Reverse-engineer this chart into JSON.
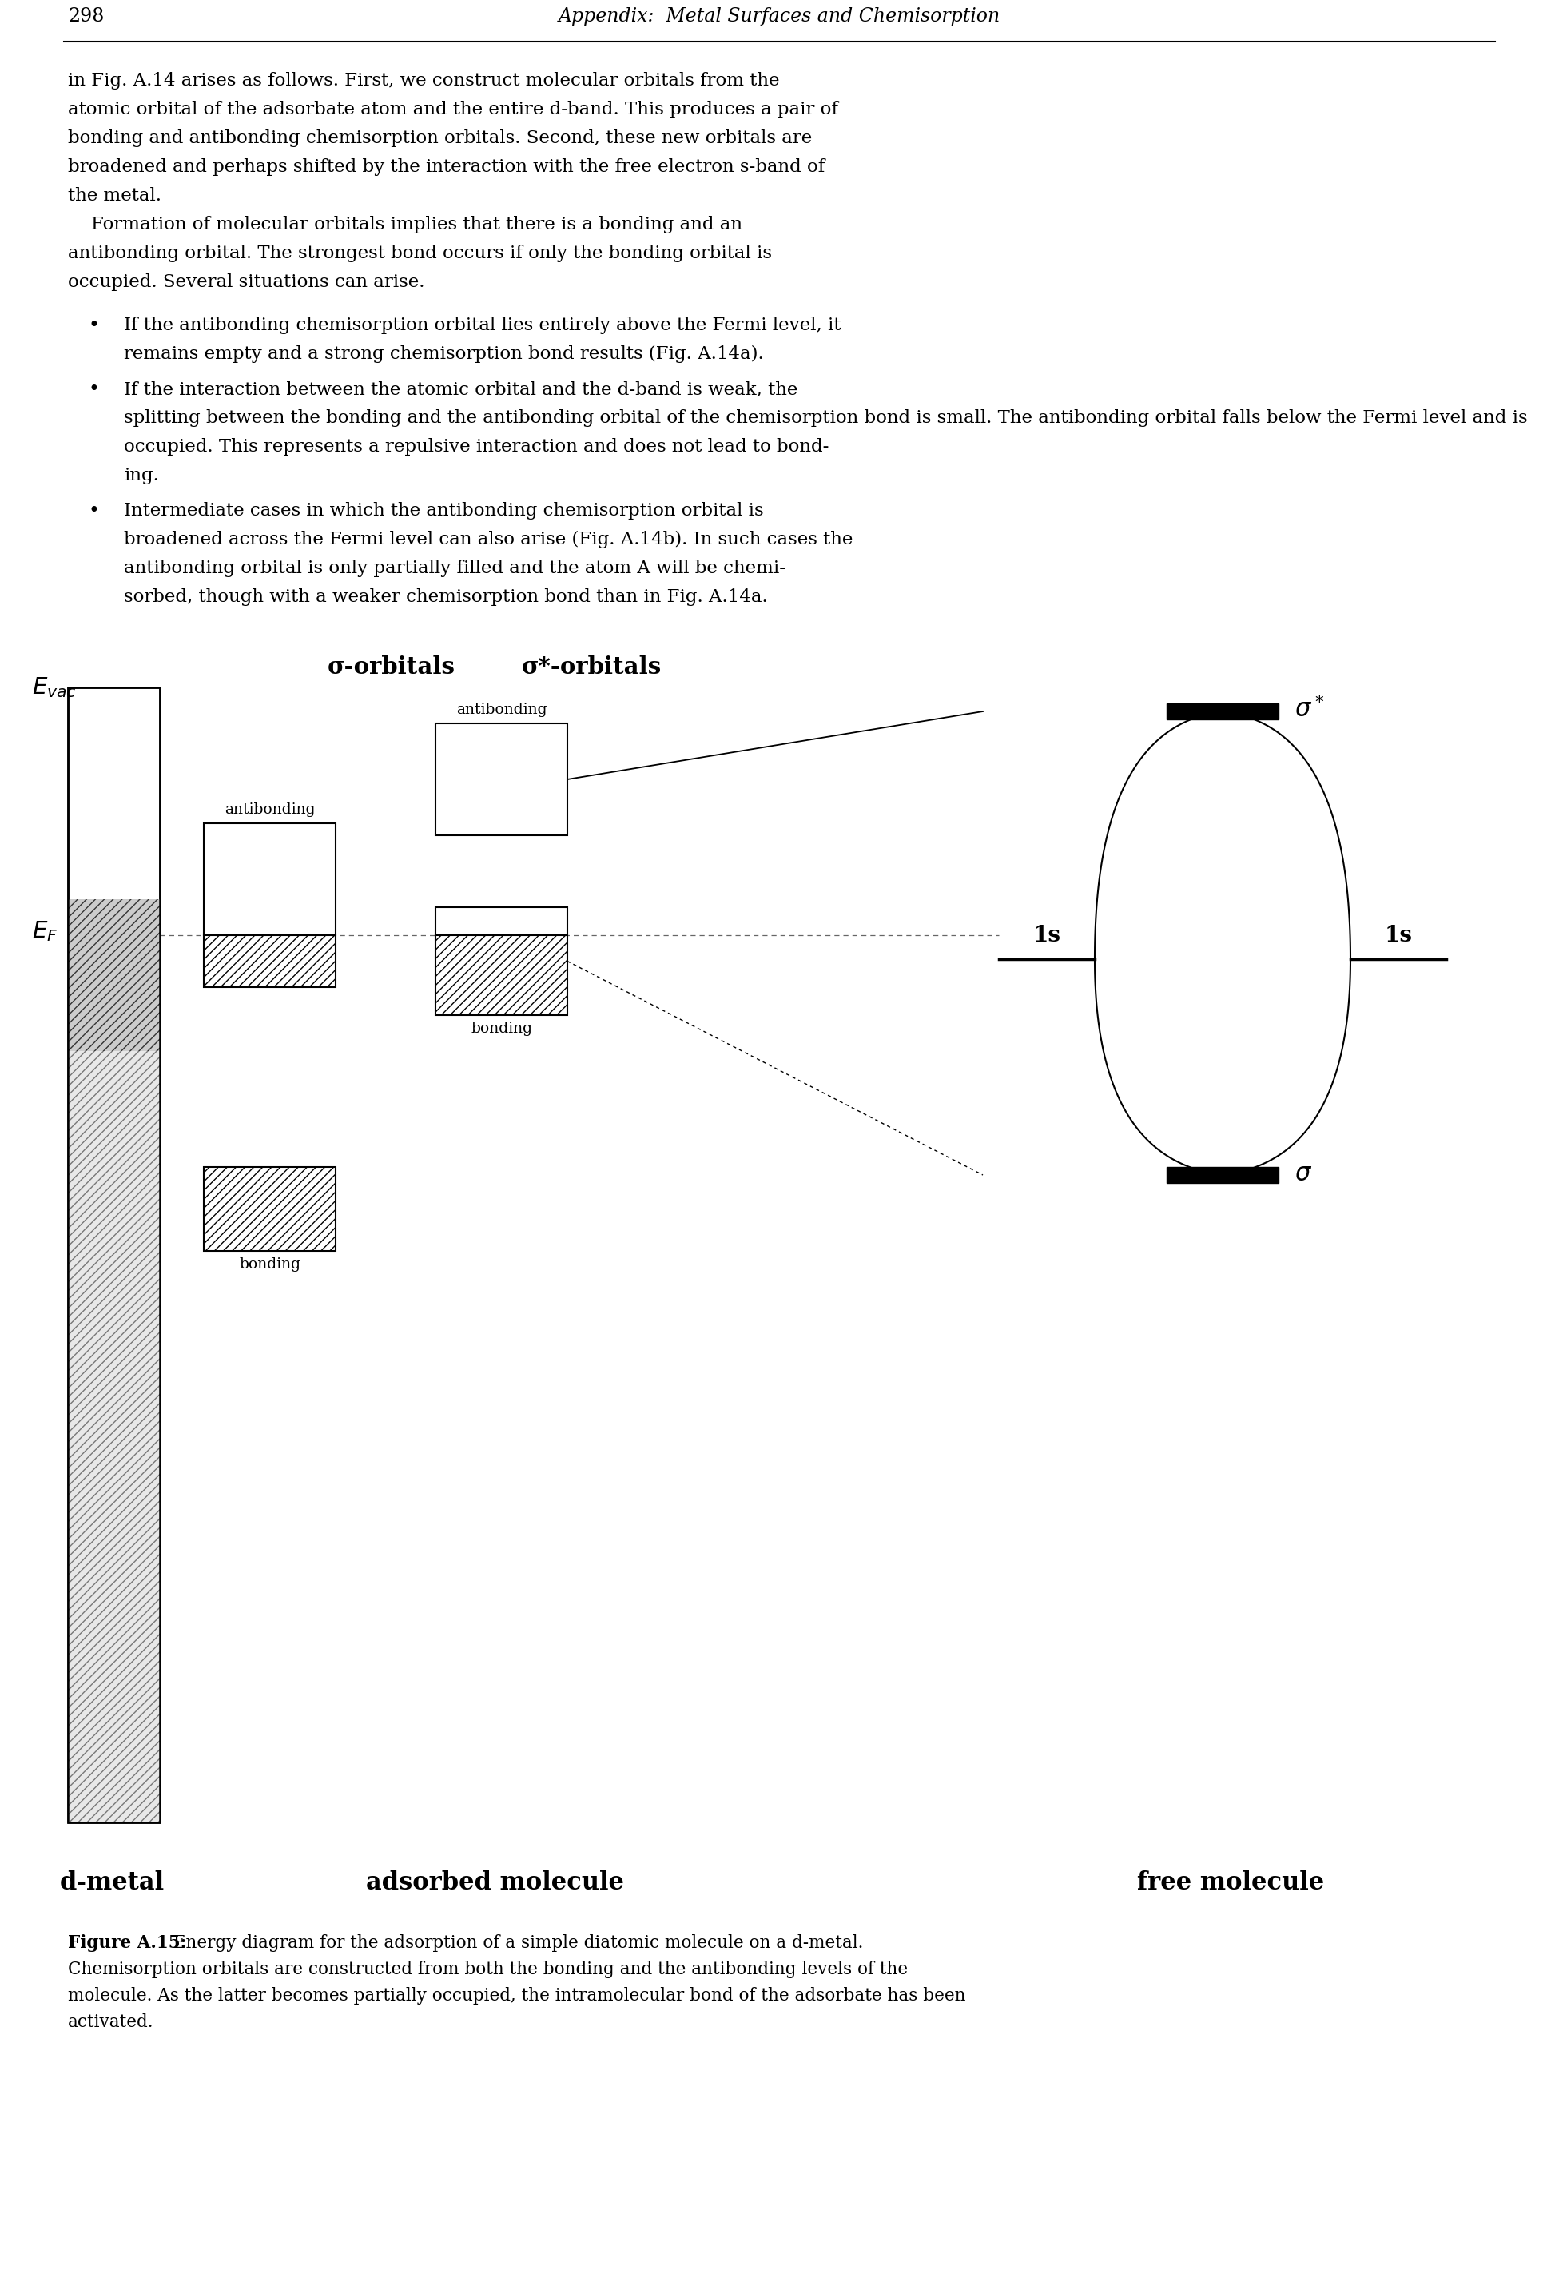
{
  "page_width": 19.51,
  "page_height": 28.5,
  "bg_color": "#ffffff",
  "title_text": "Appendix:  Metal Surfaces and Chemisorption",
  "page_num": "298",
  "diagram_header_sigma": "σ-orbitals",
  "diagram_header_sigma_star": "σ*-orbitals",
  "label_d_metal": "d-metal",
  "label_adsorbed": "adsorbed molecule",
  "label_free": "free molecule",
  "body_lines": [
    "in Fig. A.14 arises as follows. First, we construct molecular orbitals from the",
    "atomic orbital of the adsorbate atom and the entire d-band. This produces a pair of",
    "bonding and antibonding chemisorption orbitals. Second, these new orbitals are",
    "broadened and perhaps shifted by the interaction with the free electron s-band of",
    "the metal.",
    "    Formation of molecular orbitals implies that there is a bonding and an",
    "antibonding orbital. The strongest bond occurs if only the bonding orbital is",
    "occupied. Several situations can arise."
  ],
  "bullet1_lines": [
    "If the antibonding chemisorption orbital lies entirely above the Fermi level, it",
    "    remains empty and a strong chemisorption bond results (Fig. A.14a)."
  ],
  "bullet2_lines": [
    "If the interaction between the atomic orbital and the d-band is weak, the",
    "    splitting between the bonding and the antibonding orbital of the chemisorption bond is small. The antibonding orbital falls below the Fermi level and is",
    "    occupied. This represents a repulsive interaction and does not lead to bond-",
    "    ing."
  ],
  "bullet3_lines": [
    "Intermediate cases in which the antibonding chemisorption orbital is",
    "    broadened across the Fermi level can also arise (Fig. A.14b). In such cases the",
    "    antibonding orbital is only partially filled and the atom A will be chemi-",
    "    sorbed, though with a weaker chemisorption bond than in Fig. A.14a."
  ],
  "cap_bold": "Figure A.15:",
  "cap_rest_lines": [
    " Energy diagram for the adsorption of a simple diatomic molecule on a d-metal.",
    "Chemisorption orbitals are constructed from both the bonding and the antibonding levels of the",
    "molecule. As the latter becomes partially occupied, the intramolecular bond of the adsorbate has been",
    "activated."
  ]
}
